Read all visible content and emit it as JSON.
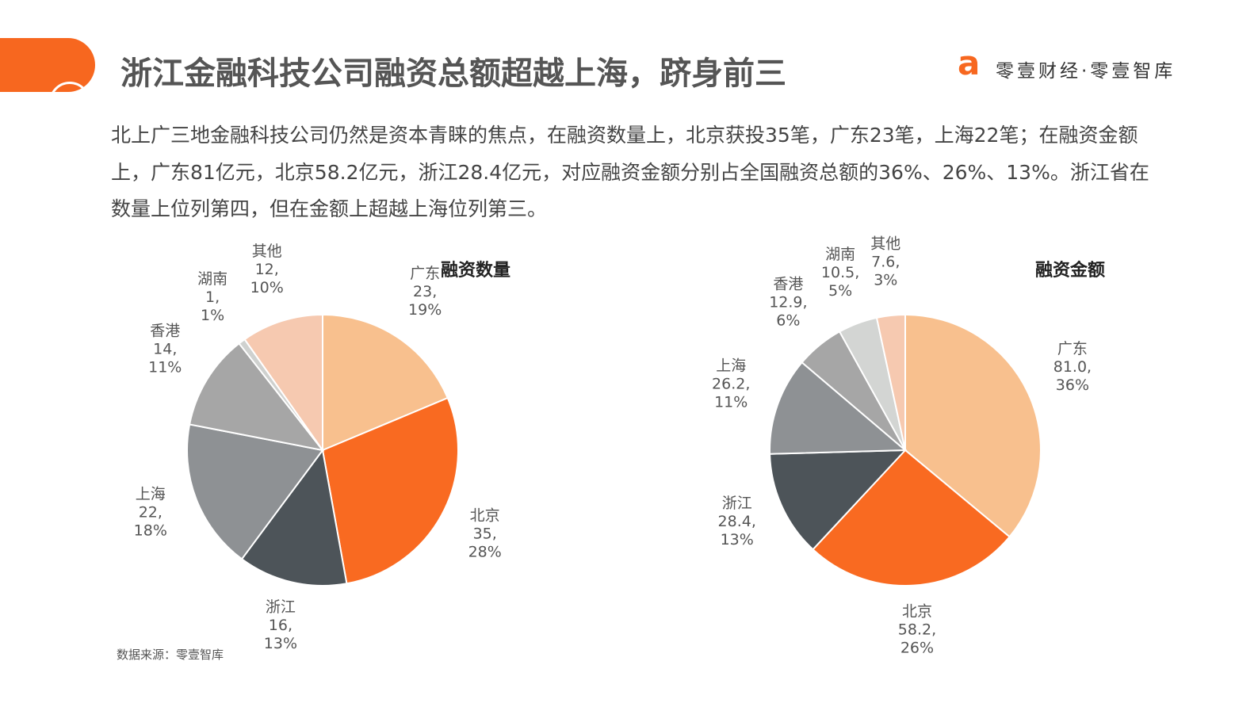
{
  "header": {
    "title": "浙江金融科技公司融资总额超越上海，跻身前三",
    "brand": "零壹财经·零壹智库"
  },
  "description": "北上广三地金融科技公司仍然是资本青睐的焦点，在融资数量上，北京获投35笔，广东23笔，上海22笔；在融资金额上，广东81亿元，北京58.2亿元，浙江28.4亿元，对应融资金额分别占全国融资总额的36%、26%、13%。浙江省在数量上位列第四，但在金额上超越上海位列第三。",
  "source": "数据来源：零壹智库",
  "chart_data": [
    {
      "type": "pie",
      "title": "融资数量",
      "categories": [
        "广东",
        "北京",
        "浙江",
        "上海",
        "香港",
        "湖南",
        "其他"
      ],
      "values": [
        23,
        35,
        16,
        22,
        14,
        1,
        12
      ],
      "value_labels": [
        "23,",
        "35,",
        "16,",
        "22,",
        "14,",
        "1,",
        "12,"
      ],
      "shares": [
        19,
        28,
        13,
        18,
        11,
        1,
        10
      ],
      "share_labels": [
        "19%",
        "28%",
        "13%",
        "18%",
        "11%",
        "1%",
        "10%"
      ],
      "colors": [
        "#f8c08e",
        "#f96a21",
        "#4d5459",
        "#8e9194",
        "#a6a6a6",
        "#cfd1cf",
        "#f6c9b0"
      ]
    },
    {
      "type": "pie",
      "title": "融资金额",
      "categories": [
        "广东",
        "北京",
        "浙江",
        "上海",
        "香港",
        "湖南",
        "其他"
      ],
      "values": [
        81.0,
        58.2,
        28.4,
        26.2,
        12.9,
        10.5,
        7.6
      ],
      "value_labels": [
        "81.0,",
        "58.2,",
        "28.4,",
        "26.2,",
        "12.9,",
        "10.5,",
        "7.6,"
      ],
      "shares": [
        36,
        26,
        13,
        11,
        6,
        5,
        3
      ],
      "share_labels": [
        "36%",
        "26%",
        "13%",
        "11%",
        "6%",
        "5%",
        "3%"
      ],
      "colors": [
        "#f8c08e",
        "#f96a21",
        "#4d5459",
        "#8e9194",
        "#a6a6a6",
        "#d3d5d3",
        "#f6c9b0"
      ]
    }
  ]
}
